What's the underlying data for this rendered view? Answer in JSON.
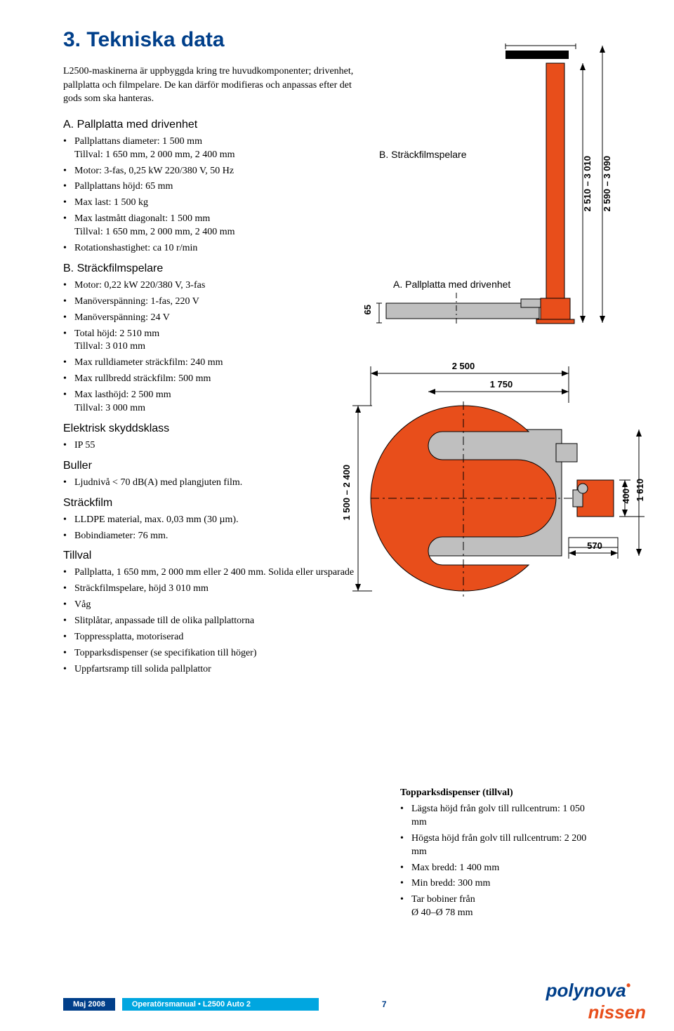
{
  "heading": "3.  Tekniska data",
  "intro": "L2500-maskinerna är uppbyggda kring tre huvudkomponenter; drivenhet, pallplatta och filmpelare. De kan därför modifieras och anpassas efter det gods som ska hanteras.",
  "sectionA": {
    "title": "A. Pallplatta med drivenhet",
    "items": [
      "Pallplattans diameter: 1 500 mm\nTillval: 1 650 mm, 2 000 mm, 2 400 mm",
      "Motor: 3-fas, 0,25 kW 220/380 V, 50 Hz",
      "Pallplattans höjd: 65 mm",
      "Max last: 1 500 kg",
      "Max lastmått diagonalt: 1 500 mm\nTillval: 1 650 mm, 2 000 mm, 2 400 mm",
      "Rotationshastighet: ca 10 r/min"
    ]
  },
  "sectionB": {
    "title": "B. Sträckfilmspelare",
    "items": [
      "Motor: 0,22 kW 220/380 V, 3-fas",
      "Manöverspänning: 1-fas, 220 V",
      "Manöverspänning: 24 V",
      "Total höjd: 2 510 mm\nTillval: 3 010 mm",
      "Max rulldiameter sträckfilm: 240 mm",
      "Max rullbredd sträckfilm: 500 mm",
      "Max lasthöjd: 2 500 mm\nTillval: 3 000 mm"
    ]
  },
  "elektrisk": {
    "title": "Elektrisk skyddsklass",
    "items": [
      "IP 55"
    ]
  },
  "buller": {
    "title": "Buller",
    "items": [
      "Ljudnivå < 70 dB(A) med plangjuten film."
    ]
  },
  "strackfilm": {
    "title": "Sträckfilm",
    "items": [
      "LLDPE material, max. 0,03 mm (30 µm).",
      "Bobindiameter: 76 mm."
    ]
  },
  "tillval": {
    "title": "Tillval",
    "items": [
      "Pallplatta, 1 650 mm, 2 000 mm eller 2 400 mm. Solida eller ursparade",
      "Sträckfilmspelare, höjd 3 010 mm",
      "Våg",
      "Slitplåtar, anpassade till de olika pallplattorna",
      "Toppressplatta, motoriserad",
      "Topparksdispenser (se specifikation till höger)",
      "Uppfartsramp till solida pallplattor"
    ]
  },
  "topp": {
    "title": "Topparksdispenser (tillval)",
    "items": [
      "Lägsta höjd från golv till rullcentrum: 1 050 mm",
      "Högsta höjd från golv till rullcentrum: 2 200 mm",
      "Max bredd: 1 400 mm",
      "Min bredd: 300 mm",
      "Tar bobiner från\nØ 40–Ø 78 mm"
    ]
  },
  "fig1": {
    "label_b": "B. Sträckfilmspelare",
    "label_a": "A. Pallplatta med drivenhet",
    "dim_65": "65",
    "dim_2510": "2 510 – 3 010",
    "dim_2590": "2 590 – 3 090",
    "colors": {
      "orange": "#e84e1b",
      "grey": "#bfbfbf",
      "black": "#000000",
      "line": "#000000"
    }
  },
  "fig2": {
    "dim_2500": "2 500",
    "dim_1750": "1 750",
    "dim_1500_2400": "1 500 – 2 400",
    "dim_570": "570",
    "dim_400": "400",
    "dim_1610": "1 610",
    "colors": {
      "orange": "#e84e1b",
      "grey": "#bfbfbf",
      "line": "#000000"
    }
  },
  "footer": {
    "date": "Maj 2008",
    "title": "Operatörsmanual • L2500 Auto 2",
    "page": "7",
    "logo1": "polynova",
    "logo2": "nissen"
  }
}
